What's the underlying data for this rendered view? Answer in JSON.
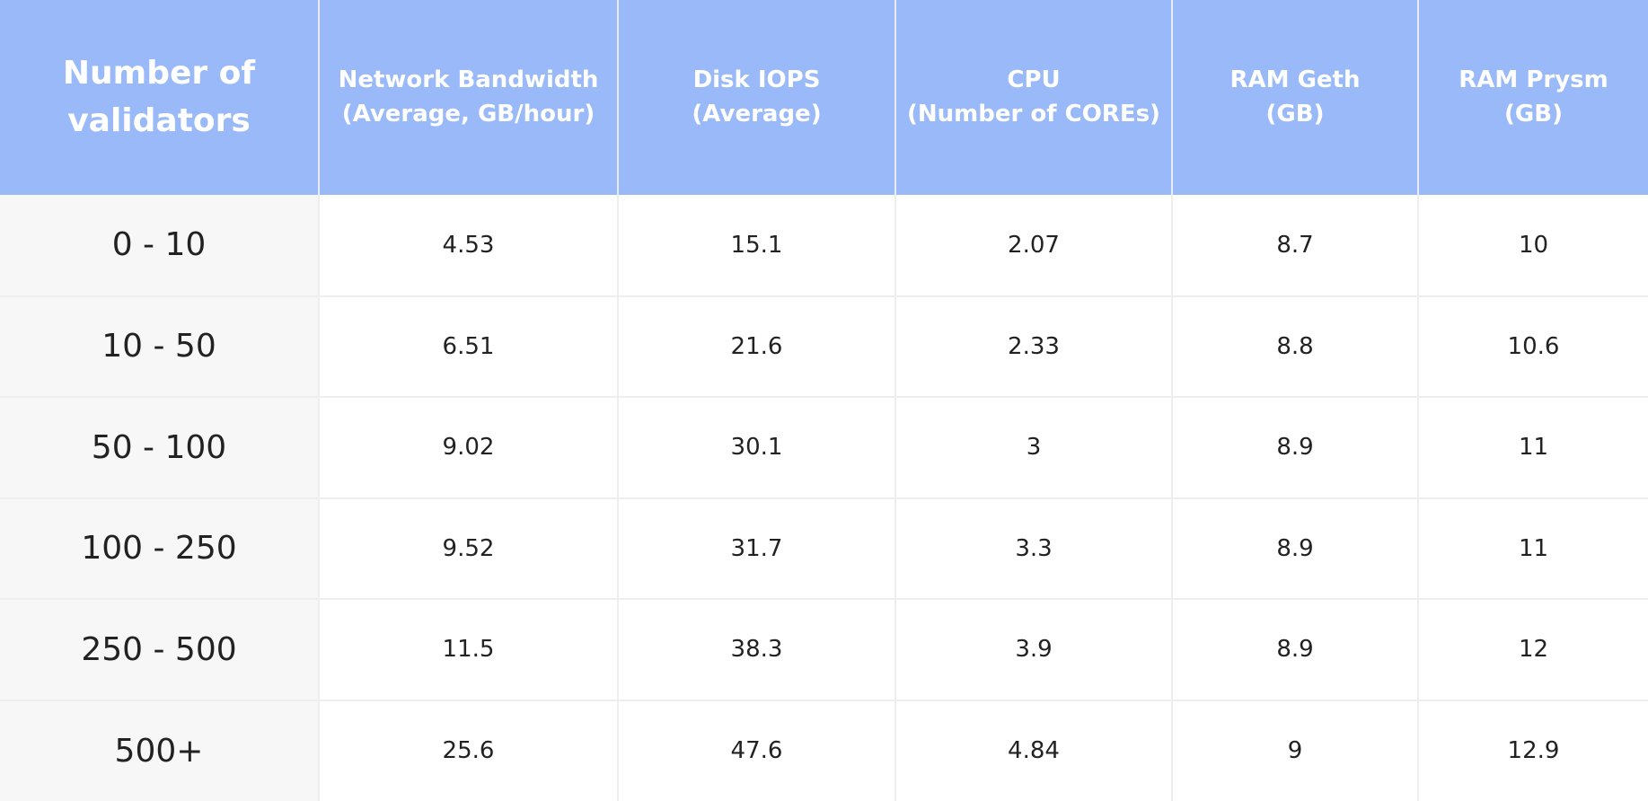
{
  "chart_data": {
    "type": "table",
    "columns": [
      {
        "lines": [
          "Number of",
          "validators"
        ]
      },
      {
        "lines": [
          "Network Bandwidth",
          "(Average, GB/hour)"
        ]
      },
      {
        "lines": [
          "Disk IOPS",
          "(Average)"
        ]
      },
      {
        "lines": [
          "CPU",
          "(Number of COREs)"
        ]
      },
      {
        "lines": [
          "RAM Geth",
          "(GB)"
        ]
      },
      {
        "lines": [
          "RAM Prysm",
          "(GB)"
        ]
      }
    ],
    "rows": [
      [
        "0 - 10",
        "4.53",
        "15.1",
        "2.07",
        "8.7",
        "10"
      ],
      [
        "10 - 50",
        "6.51",
        "21.6",
        "2.33",
        "8.8",
        "10.6"
      ],
      [
        "50 - 100",
        "9.02",
        "30.1",
        "3",
        "8.9",
        "11"
      ],
      [
        "100 - 250",
        "9.52",
        "31.7",
        "3.3",
        "8.9",
        "11"
      ],
      [
        "250 - 500",
        "11.5",
        "38.3",
        "3.9",
        "8.9",
        "12"
      ],
      [
        "500+",
        "25.6",
        "47.6",
        "4.84",
        "9",
        "12.9"
      ]
    ]
  },
  "colors": {
    "header_background": "#99b9f8",
    "header_text": "#ffffff",
    "first_column_background": "#f7f7f7",
    "body_text": "#222222",
    "grid_lines": "#eeeeee"
  }
}
